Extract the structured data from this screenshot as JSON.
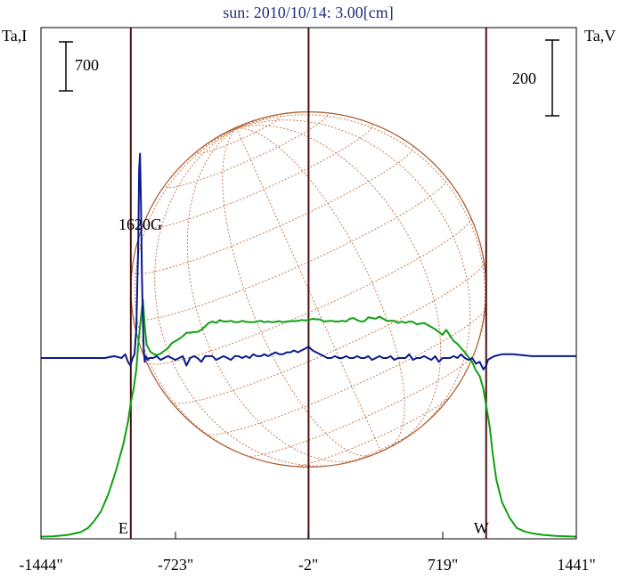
{
  "chart_data": {
    "type": "line",
    "title": "sun: 2010/10/14: 3.00[cm]",
    "left_axis_label": "Ta,I",
    "right_axis_label": "Ta,V",
    "left_scale_bar": {
      "value": 700,
      "label": "700"
    },
    "right_scale_bar": {
      "value": 200,
      "label": "200"
    },
    "x_ticks": [
      {
        "value": -1444,
        "label": "-1444\""
      },
      {
        "value": -723,
        "label": "-723\""
      },
      {
        "value": -2,
        "label": "-2\""
      },
      {
        "value": 719,
        "label": "719\""
      },
      {
        "value": 1441,
        "label": "1441\""
      }
    ],
    "xlim": [
      -1444,
      1441
    ],
    "limb_markers": [
      {
        "x": -960,
        "label": "E"
      },
      {
        "x": -2,
        "label": ""
      },
      {
        "x": 955,
        "label": "W"
      }
    ],
    "annotations": [
      {
        "x": -910,
        "label": "1620G"
      }
    ],
    "disk_grid": {
      "center_x": -2,
      "radius": 957,
      "colors": {
        "limb": "#a8562a",
        "grid": "#c07040"
      }
    },
    "series": [
      {
        "color": "#11a011",
        "x": [
          -1444,
          -1380,
          -1300,
          -1230,
          -1190,
          -1160,
          -1120,
          -1080,
          -1040,
          -1000,
          -975,
          -960,
          -945,
          -930,
          -920,
          -905,
          -895,
          -885,
          -875,
          -865,
          -855,
          -840,
          -820,
          -800,
          -780,
          -760,
          -740,
          -720,
          -700,
          -680,
          -660,
          -640,
          -620,
          -600,
          -580,
          -560,
          -540,
          -520,
          -500,
          -480,
          -460,
          -440,
          -420,
          -400,
          -380,
          -360,
          -340,
          -320,
          -300,
          -280,
          -260,
          -240,
          -220,
          -200,
          -180,
          -160,
          -140,
          -120,
          -100,
          -80,
          -60,
          -40,
          -20,
          -2,
          20,
          40,
          60,
          80,
          100,
          120,
          140,
          160,
          180,
          200,
          220,
          240,
          260,
          280,
          300,
          320,
          340,
          360,
          380,
          400,
          420,
          440,
          460,
          480,
          500,
          520,
          540,
          560,
          580,
          600,
          620,
          640,
          660,
          680,
          700,
          720,
          740,
          760,
          780,
          800,
          820,
          840,
          860,
          880,
          900,
          920,
          940,
          950,
          960,
          975,
          990,
          1010,
          1040,
          1080,
          1120,
          1160,
          1200,
          1260,
          1330,
          1441
        ],
        "y": [
          5,
          10,
          30,
          70,
          130,
          220,
          370,
          620,
          950,
          1330,
          1650,
          1920,
          2120,
          2400,
          2760,
          3150,
          3390,
          3010,
          2750,
          2700,
          2650,
          2620,
          2600,
          2620,
          2660,
          2700,
          2770,
          2800,
          2830,
          2870,
          2920,
          2920,
          2930,
          2930,
          2960,
          3010,
          3060,
          3080,
          3060,
          3100,
          3080,
          3080,
          3090,
          3070,
          3070,
          3090,
          3075,
          3070,
          3070,
          3080,
          3090,
          3070,
          3080,
          3070,
          3075,
          3085,
          3070,
          3080,
          3085,
          3085,
          3090,
          3100,
          3095,
          3100,
          3120,
          3110,
          3110,
          3080,
          3085,
          3090,
          3080,
          3080,
          3090,
          3080,
          3120,
          3130,
          3100,
          3080,
          3085,
          3140,
          3130,
          3120,
          3150,
          3120,
          3090,
          3090,
          3090,
          3060,
          3080,
          3060,
          3080,
          3075,
          3040,
          3050,
          3060,
          3030,
          3000,
          2970,
          2930,
          2890,
          2960,
          2880,
          2800,
          2760,
          2700,
          2640,
          2570,
          2500,
          2380,
          2300,
          2120,
          1960,
          1800,
          1560,
          1200,
          820,
          500,
          280,
          130,
          80,
          55,
          30,
          15,
          5
        ]
      },
      {
        "color": "#0a1a8c",
        "x": [
          -1444,
          -1300,
          -1200,
          -1100,
          -1050,
          -1010,
          -990,
          -975,
          -962,
          -950,
          -940,
          -930,
          -925,
          -920,
          -915,
          -910,
          -905,
          -900,
          -895,
          -890,
          -885,
          -880,
          -870,
          -860,
          -840,
          -820,
          -800,
          -780,
          -760,
          -740,
          -720,
          -700,
          -680,
          -660,
          -640,
          -620,
          -600,
          -580,
          -560,
          -540,
          -520,
          -500,
          -480,
          -460,
          -440,
          -420,
          -400,
          -380,
          -360,
          -340,
          -320,
          -300,
          -280,
          -260,
          -240,
          -220,
          -200,
          -180,
          -160,
          -140,
          -120,
          -100,
          -80,
          -60,
          -40,
          -20,
          -2,
          20,
          40,
          60,
          80,
          100,
          120,
          140,
          160,
          180,
          200,
          220,
          240,
          260,
          280,
          300,
          320,
          340,
          360,
          380,
          400,
          420,
          440,
          460,
          480,
          500,
          520,
          540,
          560,
          580,
          600,
          620,
          640,
          660,
          680,
          700,
          720,
          740,
          760,
          780,
          800,
          820,
          840,
          860,
          880,
          900,
          920,
          940,
          955,
          965,
          980,
          1000,
          1040,
          1100,
          1200,
          1300,
          1441
        ],
        "y": [
          0,
          0,
          0,
          0,
          5,
          0,
          10,
          -10,
          -20,
          0,
          10,
          80,
          190,
          300,
          500,
          540,
          400,
          220,
          100,
          20,
          -10,
          5,
          -5,
          0,
          0,
          5,
          -5,
          0,
          5,
          0,
          -5,
          0,
          5,
          -20,
          0,
          5,
          0,
          -10,
          5,
          5,
          5,
          -5,
          0,
          5,
          0,
          -5,
          5,
          5,
          0,
          5,
          0,
          10,
          5,
          5,
          10,
          5,
          10,
          15,
          10,
          10,
          15,
          15,
          20,
          15,
          20,
          25,
          30,
          20,
          15,
          10,
          5,
          0,
          0,
          5,
          0,
          0,
          5,
          0,
          0,
          5,
          0,
          0,
          5,
          -5,
          0,
          5,
          0,
          0,
          5,
          -5,
          0,
          0,
          0,
          10,
          -5,
          0,
          0,
          5,
          0,
          -5,
          5,
          -10,
          0,
          0,
          0,
          5,
          0,
          10,
          0,
          -5,
          0,
          -15,
          -10,
          -30,
          -20,
          -5,
          0,
          5,
          10,
          10,
          5,
          5,
          5
        ]
      }
    ]
  }
}
